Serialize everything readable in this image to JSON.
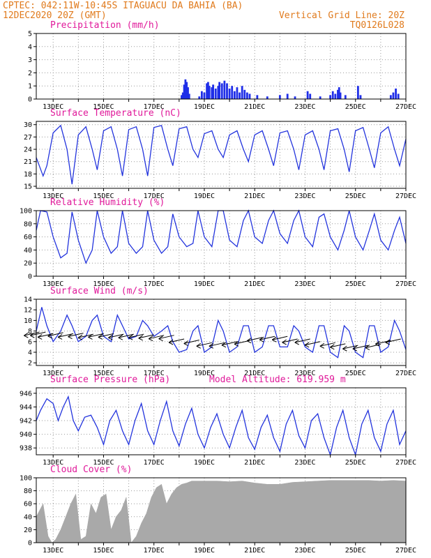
{
  "header": {
    "line1": "CPTEC:  042:11W-10:45S  ITAGUACU DA BAHIA (BA)",
    "line2_left": "12DEC2020 20Z (GMT)",
    "line2_right": "Vertical Grid Line: 20Z",
    "line3_right": "TQ0126L028"
  },
  "colors": {
    "header": "#e07a1c",
    "title": "#e0199a",
    "line": "#2233dd",
    "bar": "#1f2ee8",
    "cloud": "#a9a9a9"
  },
  "x_tick_labels": [
    "13DEC",
    "15DEC",
    "17DEC",
    "19DEC",
    "21DEC",
    "23DEC",
    "25DEC",
    "27DEC"
  ],
  "chart_data": [
    {
      "id": "precip",
      "type": "bar",
      "title": "Precipitation (mm/h)",
      "ylim": [
        0,
        5
      ],
      "yticks": [
        0,
        1,
        2,
        3,
        4,
        5
      ],
      "x_range_days": [
        12.33,
        27
      ],
      "bars": [
        [
          18.1,
          0.3
        ],
        [
          18.15,
          0.5
        ],
        [
          18.2,
          1.1
        ],
        [
          18.25,
          1.5
        ],
        [
          18.3,
          1.3
        ],
        [
          18.35,
          0.9
        ],
        [
          18.4,
          0.4
        ],
        [
          18.8,
          0.2
        ],
        [
          18.9,
          0.6
        ],
        [
          19.0,
          0.5
        ],
        [
          19.1,
          1.2
        ],
        [
          19.15,
          1.3
        ],
        [
          19.2,
          1.0
        ],
        [
          19.3,
          0.9
        ],
        [
          19.35,
          1.1
        ],
        [
          19.45,
          0.8
        ],
        [
          19.55,
          1.0
        ],
        [
          19.6,
          1.3
        ],
        [
          19.7,
          1.2
        ],
        [
          19.8,
          1.4
        ],
        [
          19.9,
          1.2
        ],
        [
          20.0,
          0.8
        ],
        [
          20.1,
          1.0
        ],
        [
          20.2,
          0.6
        ],
        [
          20.3,
          0.9
        ],
        [
          20.4,
          0.5
        ],
        [
          20.5,
          1.0
        ],
        [
          20.6,
          0.7
        ],
        [
          20.7,
          0.5
        ],
        [
          20.8,
          0.4
        ],
        [
          21.1,
          0.3
        ],
        [
          21.5,
          0.2
        ],
        [
          22.0,
          0.3
        ],
        [
          22.3,
          0.4
        ],
        [
          22.6,
          0.2
        ],
        [
          23.1,
          0.6
        ],
        [
          23.2,
          0.4
        ],
        [
          23.6,
          0.2
        ],
        [
          24.0,
          0.3
        ],
        [
          24.1,
          0.6
        ],
        [
          24.2,
          0.4
        ],
        [
          24.3,
          0.7
        ],
        [
          24.35,
          0.9
        ],
        [
          24.4,
          0.5
        ],
        [
          24.6,
          0.3
        ],
        [
          25.1,
          1.0
        ],
        [
          25.2,
          0.3
        ],
        [
          26.4,
          0.3
        ],
        [
          26.5,
          0.5
        ],
        [
          26.6,
          0.8
        ],
        [
          26.7,
          0.4
        ]
      ]
    },
    {
      "id": "temp",
      "type": "line",
      "title": "Surface Temperature (nC)",
      "ylim": [
        14.5,
        30.8
      ],
      "yticks": [
        15,
        18,
        21,
        24,
        27,
        30
      ],
      "x": [
        12.33,
        12.6,
        12.75,
        13.0,
        13.3,
        13.55,
        13.75,
        14.0,
        14.3,
        14.55,
        14.75,
        15.0,
        15.3,
        15.55,
        15.75,
        16.0,
        16.3,
        16.55,
        16.75,
        17.0,
        17.3,
        17.55,
        17.75,
        18.0,
        18.3,
        18.55,
        18.75,
        19.0,
        19.3,
        19.55,
        19.75,
        20.0,
        20.3,
        20.55,
        20.75,
        21.0,
        21.3,
        21.55,
        21.75,
        22.0,
        22.3,
        22.55,
        22.75,
        23.0,
        23.3,
        23.55,
        23.75,
        24.0,
        24.3,
        24.55,
        24.75,
        25.0,
        25.3,
        25.55,
        25.75,
        26.0,
        26.3,
        26.55,
        26.75,
        27.0
      ],
      "y": [
        22,
        17.5,
        20,
        28,
        29.8,
        24,
        15.5,
        27.5,
        29.5,
        24,
        19,
        28.5,
        29.5,
        24,
        17.5,
        28.8,
        29.5,
        24,
        17.5,
        29.3,
        29.8,
        24,
        20,
        29,
        29.5,
        24,
        22,
        27.8,
        28.5,
        24,
        22,
        27.5,
        28.5,
        24,
        21,
        27.5,
        28.5,
        24,
        20,
        28,
        28.5,
        24,
        19,
        27.5,
        28.5,
        24,
        19,
        28.5,
        29,
        24,
        18.5,
        28.5,
        29.3,
        24,
        19.5,
        28,
        29.5,
        24,
        20,
        26.5
      ]
    },
    {
      "id": "rh",
      "type": "line",
      "title": "Relative Humidity (%)",
      "ylim": [
        0,
        100
      ],
      "yticks": [
        0,
        20,
        40,
        60,
        80,
        100
      ],
      "x": [
        12.33,
        12.5,
        12.75,
        13.0,
        13.3,
        13.55,
        13.75,
        14.0,
        14.3,
        14.55,
        14.75,
        15.0,
        15.3,
        15.55,
        15.75,
        16.0,
        16.3,
        16.55,
        16.75,
        17.0,
        17.3,
        17.55,
        17.75,
        18.0,
        18.3,
        18.55,
        18.75,
        19.0,
        19.3,
        19.55,
        19.75,
        20.0,
        20.3,
        20.55,
        20.75,
        21.0,
        21.3,
        21.55,
        21.75,
        22.0,
        22.3,
        22.55,
        22.75,
        23.0,
        23.3,
        23.55,
        23.75,
        24.0,
        24.3,
        24.55,
        24.75,
        25.0,
        25.3,
        25.55,
        25.75,
        26.0,
        26.3,
        26.55,
        26.75,
        27.0
      ],
      "y": [
        70,
        100,
        98,
        60,
        28,
        35,
        98,
        55,
        20,
        40,
        100,
        60,
        35,
        45,
        100,
        50,
        35,
        45,
        100,
        55,
        35,
        45,
        95,
        60,
        45,
        50,
        100,
        60,
        45,
        100,
        100,
        55,
        45,
        85,
        100,
        60,
        50,
        85,
        100,
        65,
        50,
        85,
        100,
        60,
        45,
        90,
        95,
        60,
        40,
        70,
        100,
        60,
        40,
        70,
        95,
        55,
        40,
        70,
        90,
        50
      ]
    },
    {
      "id": "wind",
      "type": "line",
      "title": "Surface Wind (m/s)",
      "ylim": [
        1.5,
        14
      ],
      "yticks": [
        2,
        4,
        6,
        8,
        10,
        12,
        14
      ],
      "x": [
        12.33,
        12.55,
        12.75,
        13.0,
        13.3,
        13.55,
        13.75,
        14.0,
        14.3,
        14.55,
        14.75,
        15.0,
        15.3,
        15.55,
        15.75,
        16.0,
        16.3,
        16.55,
        16.75,
        17.0,
        17.3,
        17.55,
        17.75,
        18.0,
        18.3,
        18.55,
        18.75,
        19.0,
        19.3,
        19.55,
        19.75,
        20.0,
        20.3,
        20.55,
        20.75,
        21.0,
        21.3,
        21.55,
        21.75,
        22.0,
        22.3,
        22.55,
        22.75,
        23.0,
        23.3,
        23.55,
        23.75,
        24.0,
        24.3,
        24.55,
        24.75,
        25.0,
        25.3,
        25.55,
        25.75,
        26.0,
        26.3,
        26.55,
        26.75,
        27.0
      ],
      "y": [
        8,
        12.5,
        9,
        6,
        8,
        11,
        9,
        6,
        7,
        10,
        11,
        7,
        6,
        11,
        9,
        6.5,
        7,
        10,
        9,
        7,
        8,
        9,
        6,
        4,
        4.5,
        8,
        9,
        4,
        5,
        10,
        8,
        4,
        5,
        9,
        9,
        4,
        5,
        9,
        9,
        5,
        5,
        9,
        8,
        5,
        4,
        9,
        9,
        4,
        3,
        9,
        8,
        4,
        3,
        9,
        9,
        4,
        5,
        10,
        8,
        4.5
      ],
      "arrows": [
        [
          12.45,
          7.8
        ],
        [
          12.7,
          7.8
        ],
        [
          13.0,
          7.5
        ],
        [
          13.4,
          7.7
        ],
        [
          13.8,
          7.5
        ],
        [
          14.2,
          7.6
        ],
        [
          14.6,
          7.4
        ],
        [
          15.0,
          7.5
        ],
        [
          15.4,
          7.5
        ],
        [
          15.8,
          7.4
        ],
        [
          16.2,
          7.4
        ],
        [
          16.6,
          7.4
        ],
        [
          17.0,
          7.3
        ],
        [
          17.4,
          7.2
        ],
        [
          17.8,
          7.2
        ],
        [
          18.2,
          6.5
        ],
        [
          18.8,
          6.3
        ],
        [
          19.3,
          5.8
        ],
        [
          19.8,
          5.8
        ],
        [
          20.3,
          6.0
        ],
        [
          20.8,
          6.2
        ],
        [
          21.3,
          6.8
        ],
        [
          21.8,
          7.0
        ],
        [
          22.3,
          7.0
        ],
        [
          22.7,
          6.5
        ],
        [
          23.2,
          6.5
        ],
        [
          23.6,
          6.0
        ],
        [
          24.2,
          5.8
        ],
        [
          24.6,
          5.6
        ],
        [
          25.1,
          5.3
        ],
        [
          25.5,
          5.3
        ],
        [
          26.0,
          5.5
        ],
        [
          26.4,
          6.2
        ],
        [
          26.8,
          6.5
        ]
      ]
    },
    {
      "id": "pressure",
      "type": "line",
      "title": "Surface Pressure (hPa)",
      "subtitle": "Model Altitude: 619.959 m",
      "ylim": [
        937,
        946.8
      ],
      "yticks": [
        938,
        940,
        942,
        944,
        946
      ],
      "x": [
        12.33,
        12.5,
        12.75,
        13.0,
        13.2,
        13.4,
        13.6,
        13.8,
        14.0,
        14.25,
        14.5,
        14.75,
        15.0,
        15.25,
        15.5,
        15.75,
        16.0,
        16.25,
        16.5,
        16.75,
        17.0,
        17.25,
        17.5,
        17.75,
        18.0,
        18.25,
        18.5,
        18.75,
        19.0,
        19.25,
        19.5,
        19.75,
        20.0,
        20.25,
        20.5,
        20.75,
        21.0,
        21.25,
        21.5,
        21.75,
        22.0,
        22.25,
        22.5,
        22.75,
        23.0,
        23.25,
        23.5,
        23.75,
        24.0,
        24.25,
        24.5,
        24.75,
        25.0,
        25.25,
        25.5,
        25.75,
        26.0,
        26.25,
        26.5,
        26.75,
        27.0
      ],
      "y": [
        942,
        943.5,
        945.2,
        944.5,
        942,
        944,
        945.5,
        942,
        940.5,
        942.5,
        942.8,
        941,
        938.5,
        942,
        943.5,
        940.5,
        938.5,
        942,
        944.5,
        940.5,
        938.5,
        942,
        944.8,
        940.5,
        938.3,
        941.5,
        943.8,
        940,
        938,
        941,
        943,
        940,
        938,
        941,
        943.5,
        939.5,
        937.8,
        941,
        942.8,
        939.5,
        937.5,
        941.5,
        943.5,
        939.8,
        938,
        942,
        943,
        939.5,
        937,
        941,
        943.5,
        939.5,
        937,
        941.5,
        943.5,
        939.5,
        937.5,
        941.5,
        943.5,
        938.5,
        940.5
      ]
    },
    {
      "id": "cloud",
      "type": "bar",
      "title": "Cloud Cover (%)",
      "ylim": [
        0,
        100
      ],
      "yticks": [
        0,
        20,
        40,
        60,
        80,
        100
      ],
      "x": [
        12.33,
        12.6,
        12.8,
        12.95,
        13.1,
        13.3,
        13.5,
        13.7,
        13.9,
        14.1,
        14.3,
        14.5,
        14.7,
        14.9,
        15.1,
        15.3,
        15.5,
        15.7,
        15.9,
        16.1,
        16.3,
        16.5,
        16.7,
        16.9,
        17.1,
        17.3,
        17.5,
        17.7,
        17.9,
        18.1,
        18.3,
        18.5,
        19.0,
        19.5,
        20.0,
        20.5,
        21.0,
        21.5,
        22.0,
        22.5,
        23.0,
        23.5,
        24.0,
        24.5,
        25.0,
        25.5,
        26.0,
        26.5,
        27.0
      ],
      "y": [
        40,
        60,
        10,
        0,
        5,
        20,
        40,
        60,
        75,
        5,
        10,
        60,
        45,
        70,
        75,
        20,
        40,
        50,
        70,
        0,
        10,
        30,
        45,
        70,
        85,
        90,
        60,
        75,
        85,
        90,
        92,
        95,
        95,
        95,
        94,
        95,
        92,
        90,
        90,
        93,
        94,
        95,
        96,
        96,
        96,
        96,
        95,
        96,
        95
      ]
    }
  ]
}
